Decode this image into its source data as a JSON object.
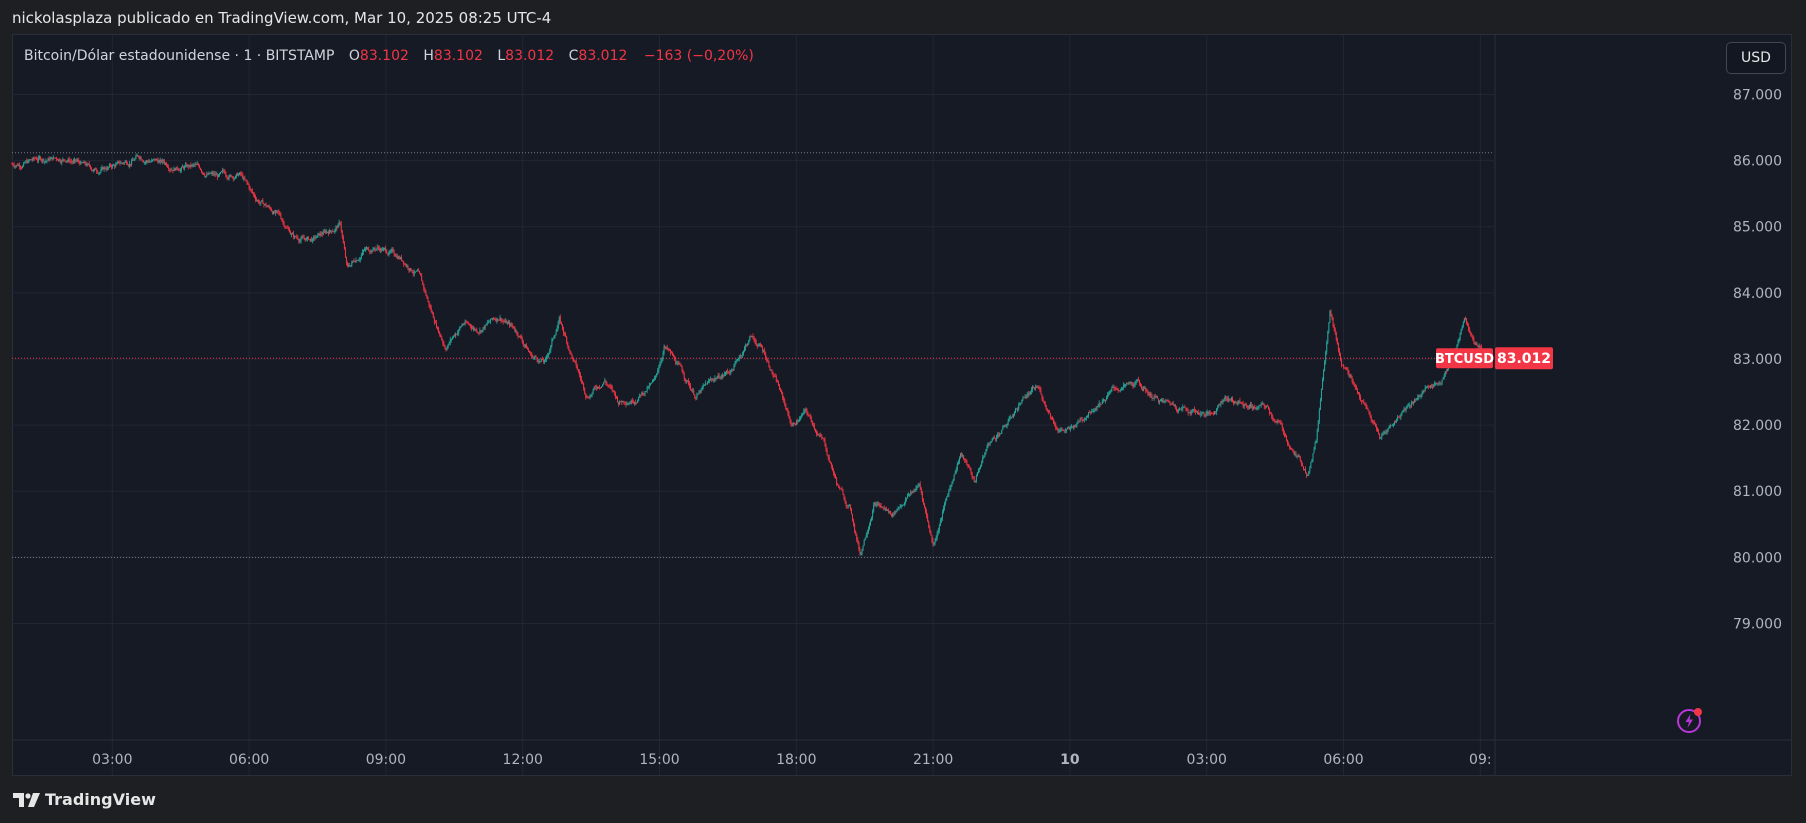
{
  "header": {
    "text": "nickolasplaza publicado en TradingView.com, Mar 10, 2025 08:25 UTC-4"
  },
  "legend": {
    "symbol": "Bitcoin/Dólar estadounidense · 1 · BITSTAMP",
    "o_label": "O",
    "o_value": "83.102",
    "h_label": "H",
    "h_value": "83.102",
    "l_label": "L",
    "l_value": "83.012",
    "c_label": "C",
    "c_value": "83.012",
    "change": "−163 (−0,20%)"
  },
  "currency_button": "USD",
  "footer": {
    "brand": "TradingView"
  },
  "colors": {
    "up": "#26a69a",
    "down": "#f23645",
    "price_tag": "#f23645",
    "background": "#161a25"
  },
  "chart_data": {
    "type": "line",
    "style": "candlestick",
    "y_ticks": [
      79000,
      80000,
      81000,
      82000,
      83000,
      84000,
      85000,
      86000,
      87000
    ],
    "y_tick_labels": [
      "79.000",
      "80.000",
      "81.000",
      "82.000",
      "83.000",
      "84.000",
      "85.000",
      "86.000",
      "87.000"
    ],
    "ylim": [
      78750,
      87900
    ],
    "x_tick_labels": [
      "03:00",
      "06:00",
      "09:00",
      "12:00",
      "15:00",
      "18:00",
      "21:00",
      "10",
      "03:00",
      "06:00",
      "09:"
    ],
    "x_tick_hours": [
      3,
      6,
      9,
      12,
      15,
      18,
      21,
      24,
      27,
      30,
      33
    ],
    "xlim_hours": [
      0.8,
      33.3
    ],
    "reference_lines": [
      86120,
      83012,
      80000
    ],
    "last_price": 83012,
    "last_price_label": "83.012",
    "price_tag_symbol": "BTCUSD",
    "grid": true,
    "price_path": [
      {
        "t": 0.8,
        "p": 85950
      },
      {
        "t": 1.4,
        "p": 86020
      },
      {
        "t": 2.0,
        "p": 86050
      },
      {
        "t": 2.6,
        "p": 85850
      },
      {
        "t": 3.2,
        "p": 85950
      },
      {
        "t": 3.6,
        "p": 86070
      },
      {
        "t": 4.2,
        "p": 85950
      },
      {
        "t": 4.8,
        "p": 85900
      },
      {
        "t": 5.3,
        "p": 85750
      },
      {
        "t": 5.8,
        "p": 85800
      },
      {
        "t": 6.1,
        "p": 85450
      },
      {
        "t": 6.6,
        "p": 85200
      },
      {
        "t": 7.0,
        "p": 84850
      },
      {
        "t": 7.4,
        "p": 84800
      },
      {
        "t": 7.8,
        "p": 84950
      },
      {
        "t": 8.0,
        "p": 85050
      },
      {
        "t": 8.15,
        "p": 84350
      },
      {
        "t": 8.5,
        "p": 84650
      },
      {
        "t": 8.8,
        "p": 84700
      },
      {
        "t": 9.3,
        "p": 84550
      },
      {
        "t": 9.7,
        "p": 84300
      },
      {
        "t": 10.0,
        "p": 83700
      },
      {
        "t": 10.3,
        "p": 83200
      },
      {
        "t": 10.7,
        "p": 83550
      },
      {
        "t": 11.0,
        "p": 83450
      },
      {
        "t": 11.5,
        "p": 83650
      },
      {
        "t": 11.9,
        "p": 83400
      },
      {
        "t": 12.2,
        "p": 83050
      },
      {
        "t": 12.5,
        "p": 82950
      },
      {
        "t": 12.8,
        "p": 83600
      },
      {
        "t": 13.1,
        "p": 83000
      },
      {
        "t": 13.4,
        "p": 82450
      },
      {
        "t": 13.8,
        "p": 82700
      },
      {
        "t": 14.1,
        "p": 82350
      },
      {
        "t": 14.5,
        "p": 82450
      },
      {
        "t": 14.9,
        "p": 82650
      },
      {
        "t": 15.1,
        "p": 83200
      },
      {
        "t": 15.4,
        "p": 82900
      },
      {
        "t": 15.8,
        "p": 82450
      },
      {
        "t": 16.2,
        "p": 82700
      },
      {
        "t": 16.6,
        "p": 82850
      },
      {
        "t": 17.0,
        "p": 83350
      },
      {
        "t": 17.3,
        "p": 83100
      },
      {
        "t": 17.6,
        "p": 82600
      },
      {
        "t": 17.9,
        "p": 82000
      },
      {
        "t": 18.2,
        "p": 82200
      },
      {
        "t": 18.6,
        "p": 81750
      },
      {
        "t": 18.9,
        "p": 81100
      },
      {
        "t": 19.2,
        "p": 80700
      },
      {
        "t": 19.4,
        "p": 80050
      },
      {
        "t": 19.7,
        "p": 80850
      },
      {
        "t": 20.1,
        "p": 80650
      },
      {
        "t": 20.4,
        "p": 80900
      },
      {
        "t": 20.7,
        "p": 81100
      },
      {
        "t": 21.0,
        "p": 80200
      },
      {
        "t": 21.3,
        "p": 80900
      },
      {
        "t": 21.6,
        "p": 81600
      },
      {
        "t": 21.9,
        "p": 81150
      },
      {
        "t": 22.2,
        "p": 81700
      },
      {
        "t": 22.6,
        "p": 82000
      },
      {
        "t": 23.0,
        "p": 82450
      },
      {
        "t": 23.3,
        "p": 82550
      },
      {
        "t": 23.7,
        "p": 82000
      },
      {
        "t": 24.0,
        "p": 81900
      },
      {
        "t": 24.5,
        "p": 82300
      },
      {
        "t": 25.0,
        "p": 82550
      },
      {
        "t": 25.5,
        "p": 82600
      },
      {
        "t": 26.0,
        "p": 82350
      },
      {
        "t": 26.6,
        "p": 82250
      },
      {
        "t": 27.1,
        "p": 82150
      },
      {
        "t": 27.4,
        "p": 82450
      },
      {
        "t": 27.8,
        "p": 82300
      },
      {
        "t": 28.3,
        "p": 82250
      },
      {
        "t": 28.6,
        "p": 82000
      },
      {
        "t": 28.9,
        "p": 81600
      },
      {
        "t": 29.2,
        "p": 81300
      },
      {
        "t": 29.4,
        "p": 81800
      },
      {
        "t": 29.7,
        "p": 83800
      },
      {
        "t": 29.95,
        "p": 82900
      },
      {
        "t": 30.2,
        "p": 82700
      },
      {
        "t": 30.5,
        "p": 82250
      },
      {
        "t": 30.8,
        "p": 81800
      },
      {
        "t": 31.1,
        "p": 82050
      },
      {
        "t": 31.4,
        "p": 82300
      },
      {
        "t": 31.8,
        "p": 82550
      },
      {
        "t": 32.1,
        "p": 82650
      },
      {
        "t": 32.4,
        "p": 83000
      },
      {
        "t": 32.65,
        "p": 83650
      },
      {
        "t": 32.85,
        "p": 83350
      },
      {
        "t": 33.0,
        "p": 83200
      },
      {
        "t": 33.1,
        "p": 83012
      }
    ]
  }
}
